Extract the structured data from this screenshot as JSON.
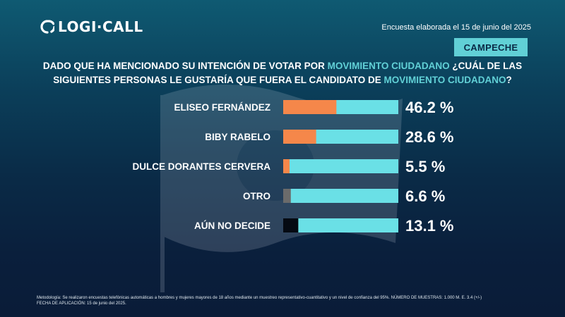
{
  "header": {
    "logo_text": "LOGI·CALL",
    "survey_date": "Encuesta elaborada el 15 de junio del 2025",
    "region_badge": "CAMPECHE"
  },
  "question": {
    "part1": "DADO QUE HA MENCIONADO SU INTENCIÓN DE VOTAR POR ",
    "highlight1": "MOVIMIENTO CIUDADANO",
    "part2": " ¿CUÁL DE LAS SIGUIENTES PERSONAS LE GUSTARÍA QUE FUERA EL CANDIDATO DE ",
    "highlight2": "MOVIMIENTO CIUDADANO",
    "part3": "?"
  },
  "colors": {
    "track": "#6ae0e6",
    "accent": "#61d0d6",
    "background": "#0a2b47"
  },
  "chart_data": {
    "type": "bar",
    "orientation": "horizontal",
    "xlim": [
      0,
      100
    ],
    "categories": [
      "ELISEO FERNÁNDEZ",
      "BIBY RABELO",
      "DULCE DORANTES CERVERA",
      "OTRO",
      "AÚN NO DECIDE"
    ],
    "values": [
      46.2,
      28.6,
      5.5,
      6.6,
      13.1
    ],
    "value_labels": [
      "46.2 %",
      "28.6 %",
      "5.5 %",
      "6.6 %",
      "13.1 %"
    ],
    "bar_colors": [
      "#f5874a",
      "#f5874a",
      "#f5874a",
      "#6b6b6b",
      "#050a12"
    ],
    "grid": false,
    "legend": "none"
  },
  "footnote": {
    "line1": "Metodología: Se realizaron encuestas telefónicas automáticas a hombres y mujeres mayores de 18 años mediante un muestreo representativo-cuantitativo y un nivel de confianza del 95%. NÚMERO DE MUESTRAS: 1.000 M. E. 3.4 (+/-)",
    "line2": "FECHA DE APLICACIÓN: 15 de junio del 2025."
  }
}
